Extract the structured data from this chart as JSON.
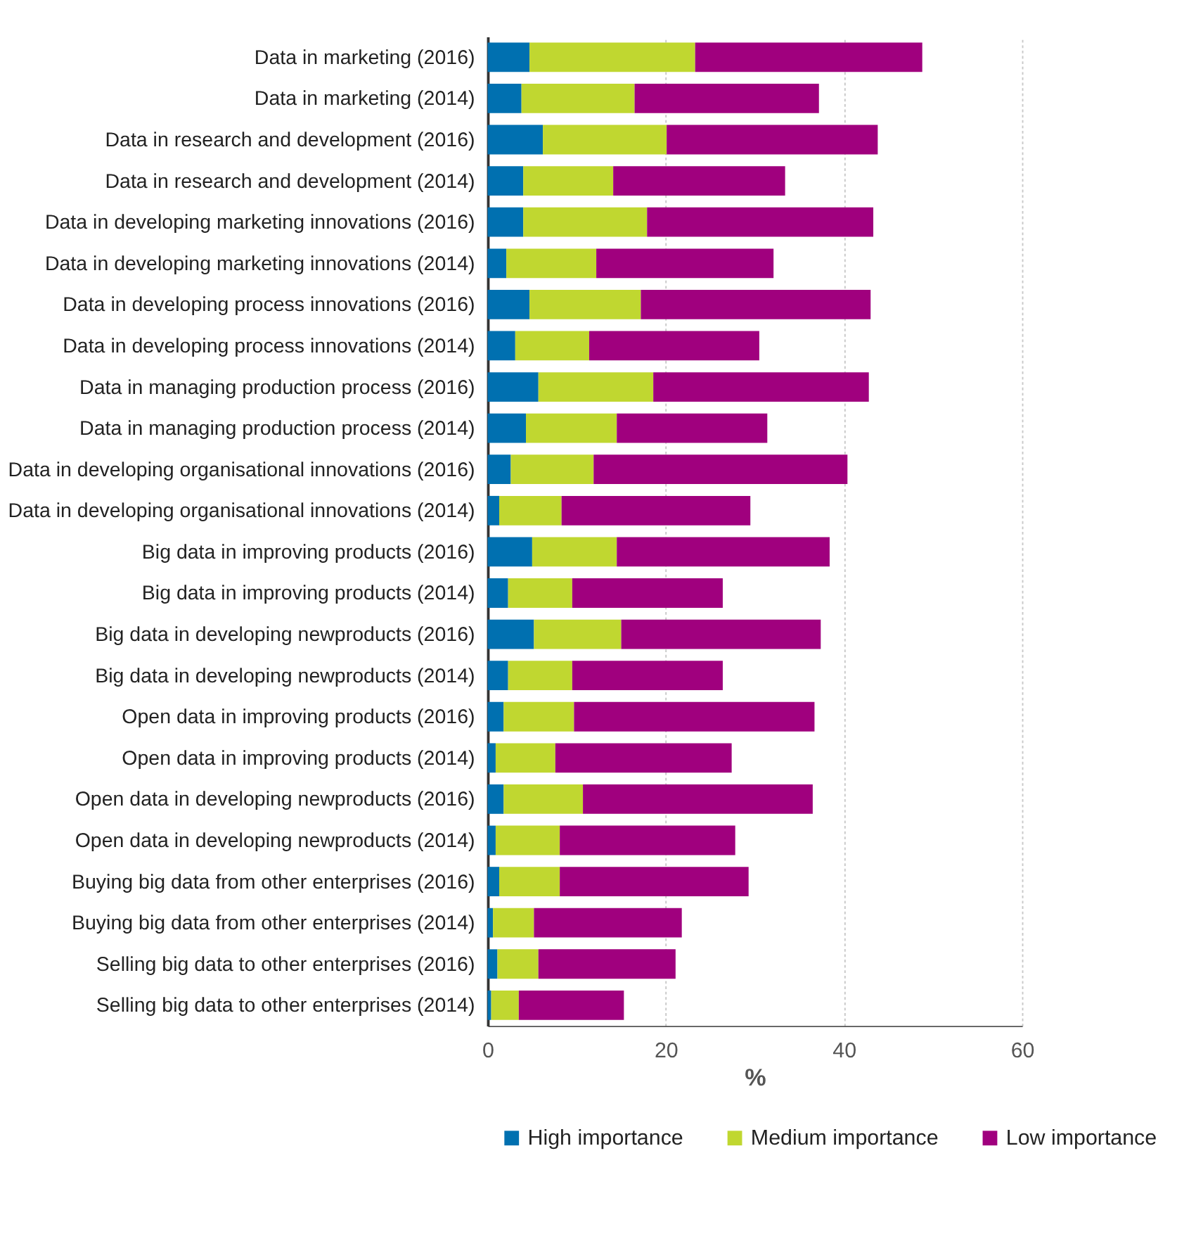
{
  "chart_data": {
    "type": "bar",
    "orientation": "horizontal",
    "stacked": true,
    "xlabel": "%",
    "categories": [
      "Data in marketing (2016)",
      "Data in marketing (2014)",
      "Data in research and development (2016)",
      "Data in research and development (2014)",
      "Data in developing marketing innovations (2016)",
      "Data in developing marketing innovations (2014)",
      "Data in developing process innovations (2016)",
      "Data in developing process innovations (2014)",
      "Data in managing production process (2016)",
      "Data in managing production process (2014)",
      "Data in developing organisational innovations (2016)",
      "Data in developing organisational innovations (2014)",
      "Big data in improving products (2016)",
      "Big data in improving products (2014)",
      "Big data in developing newproducts (2016)",
      "Big data in developing newproducts (2014)",
      "Open data in improving products (2016)",
      "Open data in improving products (2014)",
      "Open data in developing newproducts (2016)",
      "Open data in developing newproducts (2014)",
      "Buying big data from other enterprises (2016)",
      "Buying big data from other enterprises (2014)",
      "Selling big data to other enterprises (2016)",
      "Selling big data to other enterprises (2014)"
    ],
    "series": [
      {
        "name": "High importance",
        "color": "#0070b0",
        "values": [
          4.7,
          3.8,
          6.2,
          4.0,
          4.0,
          2.1,
          4.7,
          3.1,
          5.7,
          4.3,
          2.6,
          1.3,
          5.0,
          2.3,
          5.2,
          2.3,
          1.8,
          0.9,
          1.8,
          0.9,
          1.3,
          0.6,
          1.1,
          0.4
        ]
      },
      {
        "name": "Medium importance",
        "color": "#c0d730",
        "values": [
          18.6,
          12.7,
          13.9,
          10.1,
          13.9,
          10.1,
          12.5,
          8.3,
          12.9,
          10.2,
          9.3,
          7.0,
          9.5,
          7.2,
          9.8,
          7.2,
          7.9,
          6.7,
          8.9,
          7.2,
          6.8,
          4.6,
          4.6,
          3.1
        ]
      },
      {
        "name": "Low importance",
        "color": "#a0007e",
        "values": [
          25.5,
          20.7,
          23.7,
          19.3,
          25.4,
          19.9,
          25.8,
          19.1,
          24.2,
          16.9,
          28.5,
          21.2,
          23.9,
          16.9,
          22.4,
          16.9,
          27.0,
          19.8,
          25.8,
          19.7,
          21.2,
          16.6,
          15.4,
          11.8
        ]
      }
    ],
    "xlim": [
      0,
      60
    ],
    "xticks": [
      0,
      20,
      40,
      60
    ],
    "grid": "x",
    "legend": "bottom"
  }
}
